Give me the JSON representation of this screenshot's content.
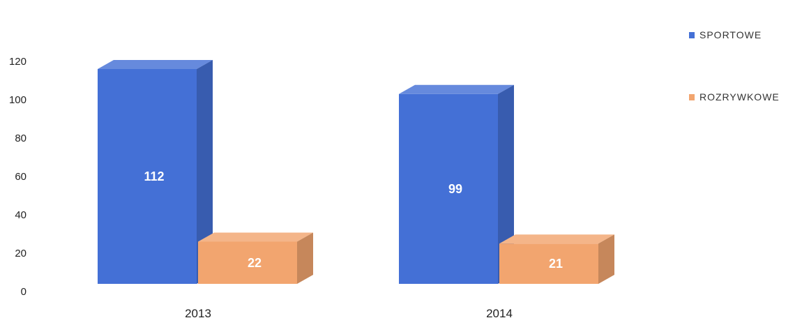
{
  "chart_data": {
    "type": "bar",
    "title": "",
    "xlabel": "",
    "ylabel": "",
    "categories": [
      "2013",
      "2014"
    ],
    "series": [
      {
        "name": "SPORTOWE",
        "values": [
          112,
          99
        ],
        "color": "#4470d6"
      },
      {
        "name": "ROZRYWKOWE",
        "values": [
          22,
          21
        ],
        "color": "#f2a56f"
      }
    ],
    "ylim": [
      0,
      120
    ],
    "yticks": [
      "0",
      "20",
      "40",
      "60",
      "80",
      "100",
      "120"
    ],
    "data_labels": [
      [
        "112",
        "99"
      ],
      [
        "22",
        "21"
      ]
    ],
    "grid": false,
    "legend_position": "right",
    "style": "3d-column"
  }
}
